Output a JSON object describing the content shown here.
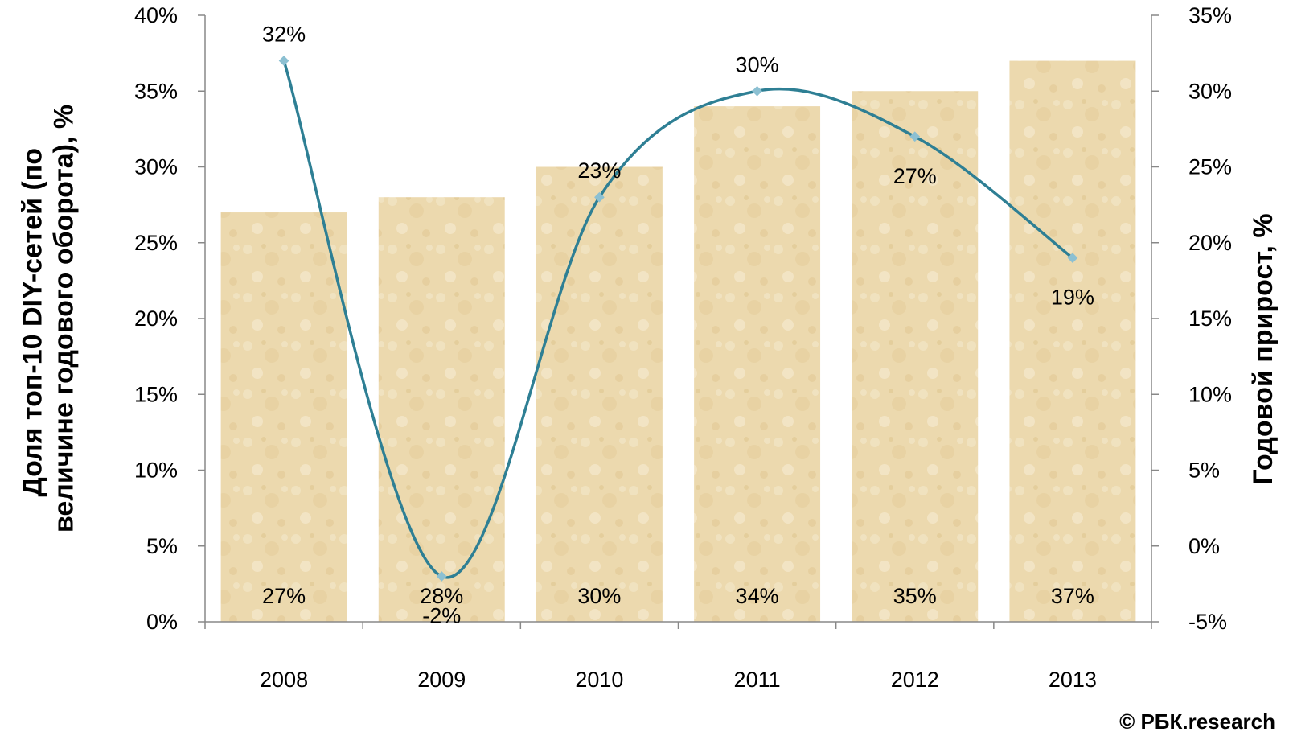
{
  "chart_data": {
    "type": "bar",
    "categories": [
      "2008",
      "2009",
      "2010",
      "2011",
      "2012",
      "2013"
    ],
    "series": [
      {
        "type": "bar",
        "axis": "left",
        "values": [
          27,
          28,
          30,
          34,
          35,
          37
        ],
        "labels": [
          "27%",
          "28%",
          "30%",
          "34%",
          "35%",
          "37%"
        ]
      },
      {
        "type": "line",
        "axis": "right",
        "smooth": true,
        "values": [
          32,
          -2,
          23,
          30,
          27,
          19
        ],
        "labels": [
          "32%",
          "-2%",
          "23%",
          "30%",
          "27%",
          "19%"
        ]
      }
    ],
    "ylabel": "Доля топ-10 DIY-сетей (по величине годового оборота), %",
    "ylabel_lines": [
      "Доля топ-10 DIY-сетей (по",
      "величине годового оборота), %"
    ],
    "y2label": "Годовой прирост, %",
    "ylim": [
      0,
      40
    ],
    "y2lim": [
      -5,
      35
    ],
    "yticks": [
      "0%",
      "5%",
      "10%",
      "15%",
      "20%",
      "25%",
      "30%",
      "35%",
      "40%"
    ],
    "y2ticks": [
      "-5%",
      "0%",
      "5%",
      "10%",
      "15%",
      "20%",
      "25%",
      "30%",
      "35%"
    ],
    "grid": false,
    "legend": "none",
    "colors": {
      "bar_fill": "#ecd9ae",
      "line": "#2e7f94",
      "marker": "#8cc0d2",
      "axis": "#888888"
    }
  },
  "footer": {
    "copyright": "© РБК.research"
  }
}
